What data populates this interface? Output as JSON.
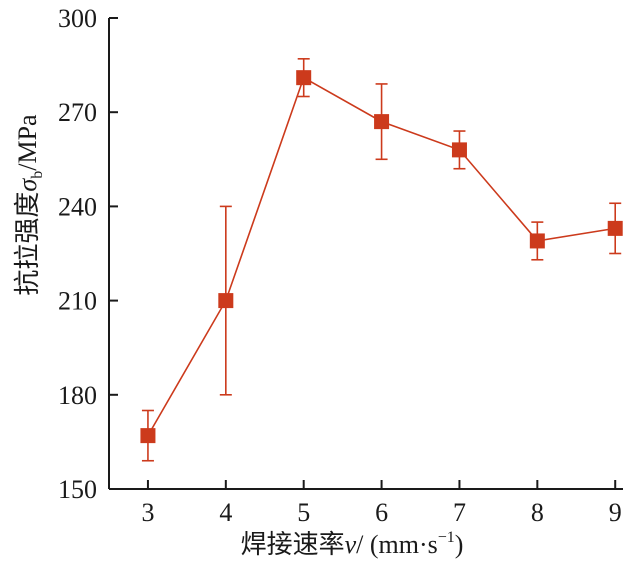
{
  "chart_data": {
    "type": "line",
    "x": [
      3,
      4,
      5,
      6,
      7,
      8,
      9
    ],
    "series": [
      {
        "values": [
          167,
          210,
          281,
          267,
          258,
          229,
          233
        ],
        "error_low": [
          159,
          180,
          275,
          255,
          252,
          223,
          225
        ],
        "error_high": [
          175,
          240,
          287,
          279,
          264,
          235,
          241
        ],
        "color": "#cc3a1c",
        "marker": "square"
      }
    ],
    "xlim": [
      2.5,
      9.1
    ],
    "ylim": [
      150,
      300
    ],
    "xticks": [
      "3",
      "4",
      "5",
      "6",
      "7",
      "8",
      "9"
    ],
    "yticks": [
      "150",
      "180",
      "210",
      "240",
      "270",
      "300"
    ],
    "xlabel": {
      "prefix": "焊接速率",
      "var": "v",
      "unit": "/ (mm·s",
      "exp": "−1",
      "close": ")"
    },
    "ylabel": {
      "prefix": "抗拉强度",
      "var": "σ",
      "sub": "b",
      "unit": "/MPa"
    },
    "grid": false,
    "legend": "none"
  }
}
